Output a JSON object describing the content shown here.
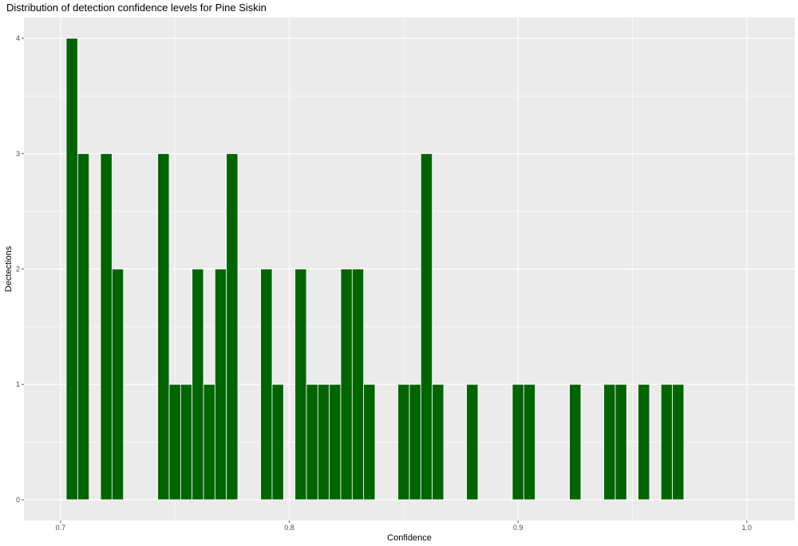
{
  "chart_data": {
    "type": "bar",
    "title": "Distribution of detection confidence levels for Pine Siskin",
    "xlabel": "Confidence",
    "ylabel": "Dectections",
    "xlim": [
      0.684,
      1.021
    ],
    "ylim": [
      -0.18,
      4.18
    ],
    "x_ticks": [
      {
        "value": 0.7,
        "label": "0.7"
      },
      {
        "value": 0.8,
        "label": "0.8"
      },
      {
        "value": 0.9,
        "label": "0.9"
      },
      {
        "value": 1.0,
        "label": "1.0"
      }
    ],
    "y_ticks": [
      {
        "value": 0,
        "label": "0"
      },
      {
        "value": 1,
        "label": "1"
      },
      {
        "value": 2,
        "label": "2"
      },
      {
        "value": 3,
        "label": "3"
      },
      {
        "value": 4,
        "label": "4"
      }
    ],
    "bin_width": 0.005,
    "bins": [
      {
        "center": 0.705,
        "count": 4
      },
      {
        "center": 0.71,
        "count": 3
      },
      {
        "center": 0.72,
        "count": 3
      },
      {
        "center": 0.725,
        "count": 2
      },
      {
        "center": 0.745,
        "count": 3
      },
      {
        "center": 0.75,
        "count": 1
      },
      {
        "center": 0.755,
        "count": 1
      },
      {
        "center": 0.76,
        "count": 2
      },
      {
        "center": 0.765,
        "count": 1
      },
      {
        "center": 0.77,
        "count": 2
      },
      {
        "center": 0.775,
        "count": 3
      },
      {
        "center": 0.79,
        "count": 2
      },
      {
        "center": 0.795,
        "count": 1
      },
      {
        "center": 0.805,
        "count": 2
      },
      {
        "center": 0.81,
        "count": 1
      },
      {
        "center": 0.815,
        "count": 1
      },
      {
        "center": 0.82,
        "count": 1
      },
      {
        "center": 0.825,
        "count": 2
      },
      {
        "center": 0.83,
        "count": 2
      },
      {
        "center": 0.835,
        "count": 1
      },
      {
        "center": 0.85,
        "count": 1
      },
      {
        "center": 0.855,
        "count": 1
      },
      {
        "center": 0.86,
        "count": 3
      },
      {
        "center": 0.865,
        "count": 1
      },
      {
        "center": 0.88,
        "count": 1
      },
      {
        "center": 0.9,
        "count": 1
      },
      {
        "center": 0.905,
        "count": 1
      },
      {
        "center": 0.925,
        "count": 1
      },
      {
        "center": 0.94,
        "count": 1
      },
      {
        "center": 0.945,
        "count": 1
      },
      {
        "center": 0.955,
        "count": 1
      },
      {
        "center": 0.965,
        "count": 1
      },
      {
        "center": 0.97,
        "count": 1
      }
    ],
    "bar_color": "#006400",
    "panel_color": "#ebebeb",
    "grid": true,
    "legend": "none"
  }
}
